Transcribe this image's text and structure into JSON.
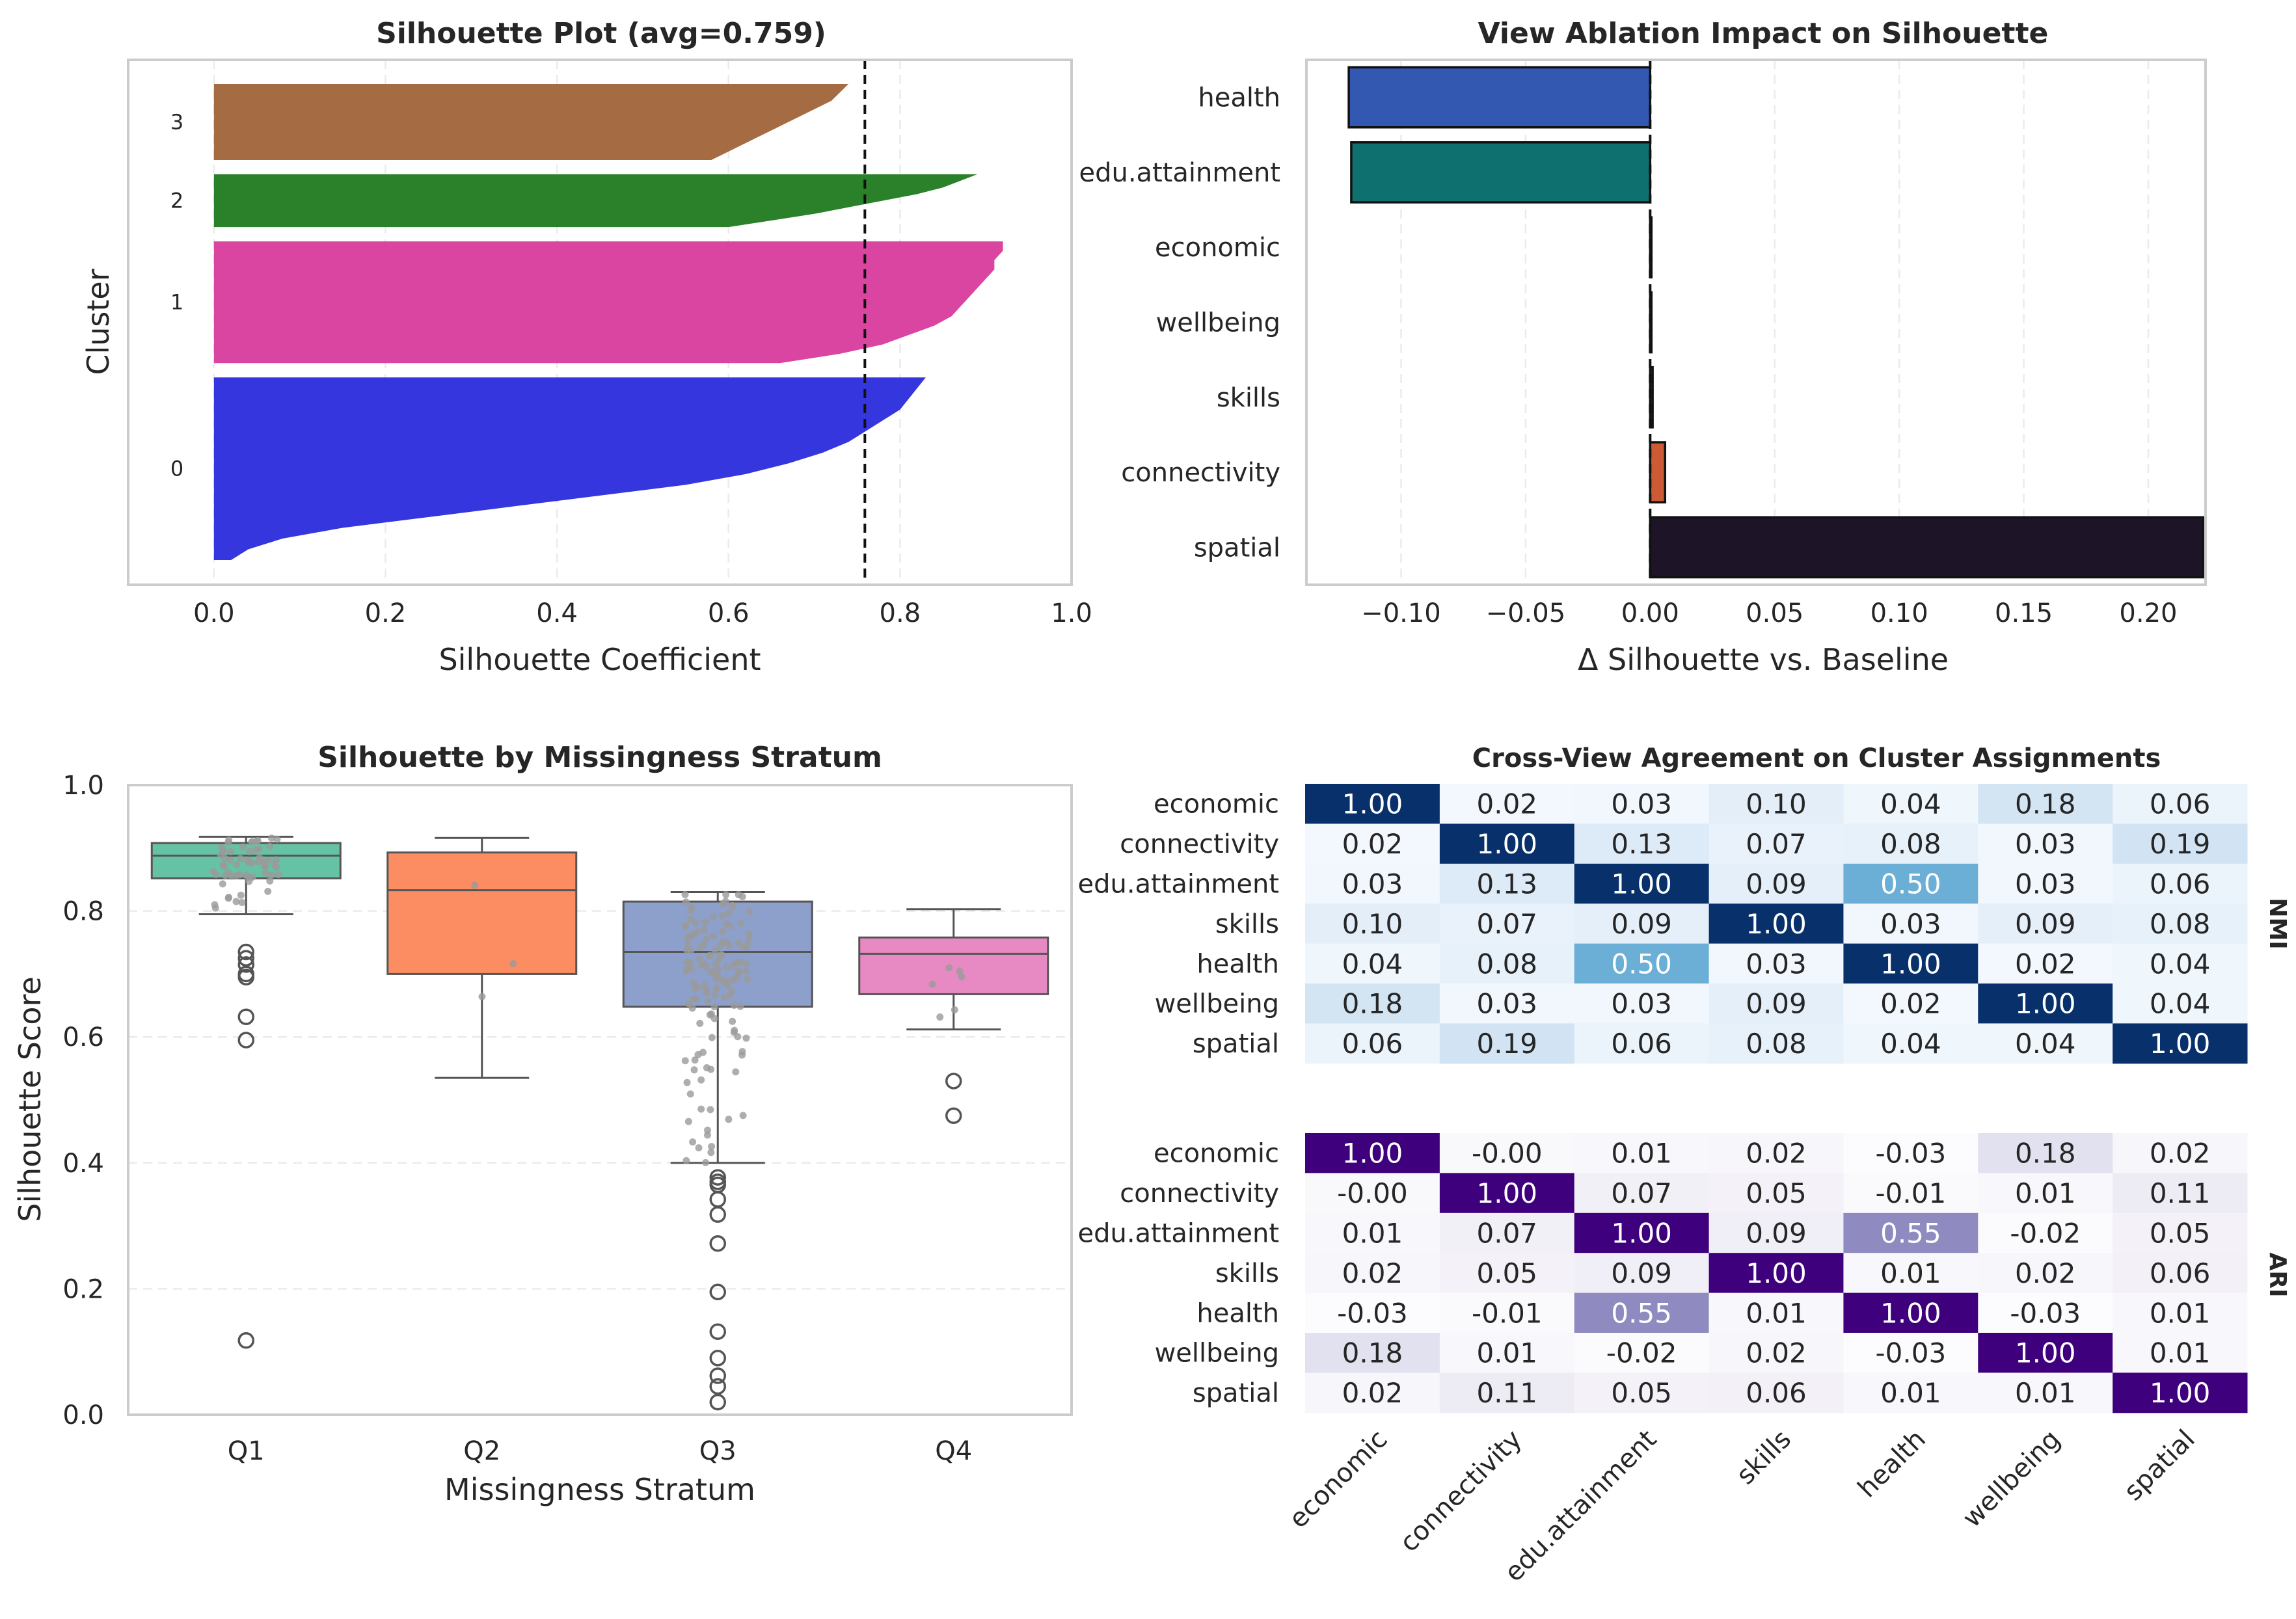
{
  "chart_data": [
    {
      "type": "area",
      "title": "Silhouette Plot (avg=0.759)",
      "xlabel": "Silhouette Coefficient",
      "ylabel": "Cluster",
      "xlim": [
        -0.1,
        1.0
      ],
      "xticks": [
        "0.0",
        "0.2",
        "0.4",
        "0.6",
        "0.8",
        "1.0"
      ],
      "xtick_values": [
        0.0,
        0.2,
        0.4,
        0.6,
        0.8,
        1.0
      ],
      "average_line": 0.759,
      "grid": true,
      "clusters": [
        {
          "label": "0",
          "color": "#2a2bdc",
          "size": 180,
          "max": 0.83,
          "profile": [
            0.83,
            0.82,
            0.81,
            0.8,
            0.78,
            0.76,
            0.74,
            0.71,
            0.67,
            0.62,
            0.55,
            0.45,
            0.35,
            0.25,
            0.15,
            0.08,
            0.04,
            0.02
          ]
        },
        {
          "label": "1",
          "color": "#d73b9b",
          "size": 120,
          "max": 0.92,
          "profile": [
            0.92,
            0.92,
            0.91,
            0.91,
            0.9,
            0.89,
            0.88,
            0.87,
            0.86,
            0.84,
            0.81,
            0.78,
            0.73,
            0.66
          ]
        },
        {
          "label": "2",
          "color": "#1f7a1f",
          "size": 52,
          "max": 0.89,
          "profile": [
            0.89,
            0.87,
            0.85,
            0.82,
            0.78,
            0.74,
            0.7,
            0.65,
            0.6
          ]
        },
        {
          "label": "3",
          "color": "#a0643a",
          "size": 75,
          "max": 0.74,
          "profile": [
            0.74,
            0.73,
            0.72,
            0.7,
            0.68,
            0.66,
            0.64,
            0.62,
            0.6,
            0.58
          ]
        }
      ]
    },
    {
      "type": "bar",
      "orientation": "horizontal",
      "title": "View Ablation Impact on Silhouette",
      "xlabel": "Δ Silhouette vs. Baseline",
      "ylabel": "",
      "xlim": [
        -0.138,
        0.223
      ],
      "xticks": [
        "−0.10",
        "−0.05",
        "0.00",
        "0.05",
        "0.10",
        "0.15",
        "0.20"
      ],
      "xtick_values": [
        -0.1,
        -0.05,
        0.0,
        0.05,
        0.1,
        0.15,
        0.2
      ],
      "categories": [
        "health",
        "edu.attainment",
        "economic",
        "wellbeing",
        "skills",
        "connectivity",
        "spatial"
      ],
      "values": [
        -0.121,
        -0.12,
        0.0005,
        0.0005,
        0.001,
        0.006,
        0.222
      ],
      "colors": [
        "#3358b2",
        "#0f7070",
        "#3a3a3a",
        "#3a3a3a",
        "#3a3a3a",
        "#cc5a35",
        "#1e1428"
      ],
      "grid": true
    },
    {
      "type": "box",
      "title": "Silhouette by Missingness Stratum",
      "xlabel": "Missingness Stratum",
      "ylabel": "Silhouette Score",
      "ylim": [
        0.0,
        1.0
      ],
      "yticks": [
        "0.0",
        "0.2",
        "0.4",
        "0.6",
        "0.8",
        "1.0"
      ],
      "ytick_values": [
        0.0,
        0.2,
        0.4,
        0.6,
        0.8,
        1.0
      ],
      "categories": [
        "Q1",
        "Q2",
        "Q3",
        "Q4"
      ],
      "colors": [
        "#66c2a5",
        "#fc8d62",
        "#8da0cb",
        "#e78ac3"
      ],
      "boxes": [
        {
          "q1": 0.852,
          "median": 0.888,
          "q3": 0.908,
          "whisker_low": 0.795,
          "whisker_high": 0.918,
          "outliers": [
            0.735,
            0.725,
            0.715,
            0.7,
            0.695,
            0.632,
            0.595,
            0.118
          ]
        },
        {
          "q1": 0.7,
          "median": 0.833,
          "q3": 0.893,
          "whisker_low": 0.535,
          "whisker_high": 0.916,
          "outliers": []
        },
        {
          "q1": 0.648,
          "median": 0.735,
          "q3": 0.815,
          "whisker_low": 0.4,
          "whisker_high": 0.83,
          "outliers": [
            0.377,
            0.37,
            0.365,
            0.342,
            0.318,
            0.272,
            0.195,
            0.132,
            0.09,
            0.062,
            0.045,
            0.02
          ]
        },
        {
          "q1": 0.668,
          "median": 0.732,
          "q3": 0.758,
          "whisker_low": 0.612,
          "whisker_high": 0.803,
          "outliers": [
            0.53,
            0.475
          ]
        }
      ],
      "grid": true
    },
    {
      "type": "heatmap",
      "title": "Cross-View Agreement on Cluster Assignments",
      "labels": [
        "economic",
        "connectivity",
        "edu.attainment",
        "skills",
        "health",
        "wellbeing",
        "spatial"
      ],
      "panels": [
        {
          "name": "NMI",
          "colormap": "Blues",
          "matrix": [
            [
              "1.00",
              "0.02",
              "0.03",
              "0.10",
              "0.04",
              "0.18",
              "0.06"
            ],
            [
              "0.02",
              "1.00",
              "0.13",
              "0.07",
              "0.08",
              "0.03",
              "0.19"
            ],
            [
              "0.03",
              "0.13",
              "1.00",
              "0.09",
              "0.50",
              "0.03",
              "0.06"
            ],
            [
              "0.10",
              "0.07",
              "0.09",
              "1.00",
              "0.03",
              "0.09",
              "0.08"
            ],
            [
              "0.04",
              "0.08",
              "0.50",
              "0.03",
              "1.00",
              "0.02",
              "0.04"
            ],
            [
              "0.18",
              "0.03",
              "0.03",
              "0.09",
              "0.02",
              "1.00",
              "0.04"
            ],
            [
              "0.06",
              "0.19",
              "0.06",
              "0.08",
              "0.04",
              "0.04",
              "1.00"
            ]
          ]
        },
        {
          "name": "ARI",
          "colormap": "Purples",
          "matrix": [
            [
              "1.00",
              "-0.00",
              "0.01",
              "0.02",
              "-0.03",
              "0.18",
              "0.02"
            ],
            [
              "-0.00",
              "1.00",
              "0.07",
              "0.05",
              "-0.01",
              "0.01",
              "0.11"
            ],
            [
              "0.01",
              "0.07",
              "1.00",
              "0.09",
              "0.55",
              "-0.02",
              "0.05"
            ],
            [
              "0.02",
              "0.05",
              "0.09",
              "1.00",
              "0.01",
              "0.02",
              "0.06"
            ],
            [
              "-0.03",
              "-0.01",
              "0.55",
              "0.01",
              "1.00",
              "-0.03",
              "0.01"
            ],
            [
              "0.18",
              "0.01",
              "-0.02",
              "0.02",
              "-0.03",
              "1.00",
              "0.01"
            ],
            [
              "0.02",
              "0.11",
              "0.05",
              "0.06",
              "0.01",
              "0.01",
              "1.00"
            ]
          ]
        }
      ]
    }
  ]
}
